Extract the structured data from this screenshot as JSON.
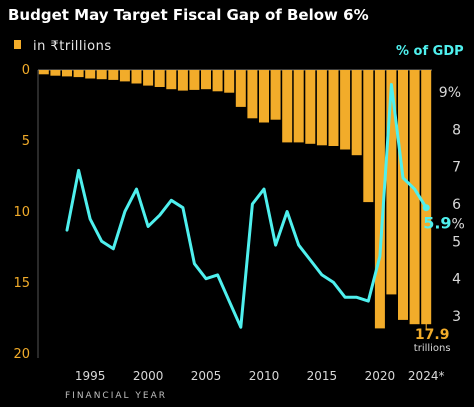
{
  "chart_data": {
    "type": "bar",
    "title": "Budget May Target Fiscal Gap of Below 6%",
    "legend": "in ₹trillions",
    "xlabel": "FINANCIAL YEAR",
    "right_axis_label": "% of GDP",
    "colors": {
      "bars": "#f2ac2a",
      "line": "#4ff0ee",
      "background": "#000000"
    },
    "ylim": [
      0,
      20
    ],
    "yticks": [
      0,
      5,
      10,
      15,
      20
    ],
    "y2lim": [
      2.5,
      9.5
    ],
    "y2ticks": [
      "3",
      "4",
      "5",
      "6",
      "7",
      "8",
      "9%"
    ],
    "xticks": [
      "1995",
      "2000",
      "2005",
      "2010",
      "2015",
      "2020",
      "2024*"
    ],
    "xtick_values": [
      1995,
      2000,
      2005,
      2010,
      2015,
      2020,
      2024
    ],
    "categories": [
      1991,
      1992,
      1993,
      1994,
      1995,
      1996,
      1997,
      1998,
      1999,
      2000,
      2001,
      2002,
      2003,
      2004,
      2005,
      2006,
      2007,
      2008,
      2009,
      2010,
      2011,
      2012,
      2013,
      2014,
      2015,
      2016,
      2017,
      2018,
      2019,
      2020,
      2021,
      2022,
      2023,
      2024
    ],
    "series": [
      {
        "kind": "bar",
        "values": [
          0.3,
          0.4,
          0.45,
          0.5,
          0.6,
          0.65,
          0.7,
          0.8,
          0.95,
          1.1,
          1.2,
          1.35,
          1.45,
          1.4,
          1.35,
          1.5,
          1.6,
          2.6,
          3.4,
          3.7,
          3.5,
          5.1,
          5.1,
          5.2,
          5.3,
          5.35,
          5.6,
          6.0,
          9.3,
          18.2,
          15.8,
          17.6,
          17.9,
          17.9
        ]
      },
      {
        "kind": "line",
        "axis": "right",
        "x": [
          1993,
          1994,
          1995,
          1996,
          1997,
          1998,
          1999,
          2000,
          2001,
          2002,
          2003,
          2004,
          2005,
          2006,
          2007,
          2008,
          2009,
          2010,
          2011,
          2012,
          2013,
          2014,
          2015,
          2016,
          2017,
          2018,
          2019,
          2020,
          2021,
          2022,
          2023,
          2024
        ],
        "values": [
          5.3,
          6.9,
          5.6,
          5.0,
          4.8,
          5.8,
          6.4,
          5.4,
          5.7,
          6.1,
          5.9,
          4.4,
          4.0,
          4.1,
          3.4,
          2.7,
          6.0,
          6.4,
          4.9,
          5.8,
          4.9,
          4.5,
          4.1,
          3.9,
          3.5,
          3.5,
          3.4,
          4.6,
          9.2,
          6.7,
          6.4,
          5.9
        ]
      }
    ],
    "annotations": {
      "last_bar_value": "17.9",
      "last_bar_unit": "trillions",
      "last_line_value": "5.9",
      "last_line_unit": "%"
    }
  }
}
